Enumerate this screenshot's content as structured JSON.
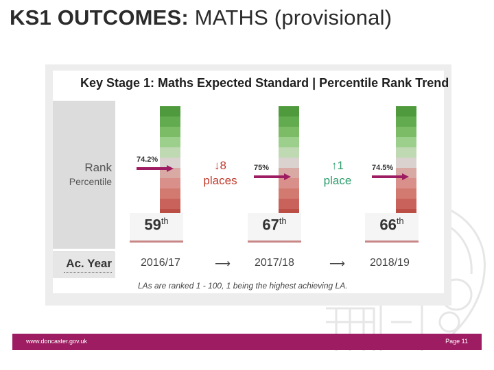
{
  "slide": {
    "title_bold": "KS1 OUTCOMES:",
    "title_rest": " MATHS (provisional)"
  },
  "chart": {
    "title": "Key Stage 1: Maths Expected Standard | Percentile Rank Trend",
    "side_label_line1": "Rank",
    "side_label_line2": "Percentile",
    "row_label": "Ac. Year",
    "note": "LAs are ranked 1 - 100, 1 being the highest achieving LA."
  },
  "colors": {
    "scale": [
      "#4e9a3c",
      "#63ab4f",
      "#7cbc67",
      "#9ccf8b",
      "#bfd9b3",
      "#d9d2cf",
      "#d9aaa4",
      "#d9908a",
      "#d37a70",
      "#c8625a",
      "#bc4f45",
      "#a9392f"
    ],
    "arrow": "#9e1c61",
    "down": "#c0392b",
    "up": "#2e9e6e",
    "footer": "#9e1c61"
  },
  "chart_data": {
    "type": "table",
    "title": "Key Stage 1: Maths Expected Standard | Percentile Rank Trend",
    "years": [
      "2016/17",
      "2017/18",
      "2018/19"
    ],
    "values": [
      "74.2%",
      "75%",
      "74.5%"
    ],
    "rank_numbers": [
      "59",
      "67",
      "66"
    ],
    "rank_suffix": [
      "th",
      "th",
      "th"
    ],
    "changes": [
      {
        "direction": "down",
        "symbol": "↓",
        "amount": "8",
        "unit": "places"
      },
      {
        "direction": "up",
        "symbol": "↑",
        "amount": "1",
        "unit": "place"
      }
    ],
    "year_arrows": [
      "⟶",
      "⟶"
    ]
  },
  "footer": {
    "url": "www.doncaster.gov.uk",
    "page": "Page 11"
  }
}
